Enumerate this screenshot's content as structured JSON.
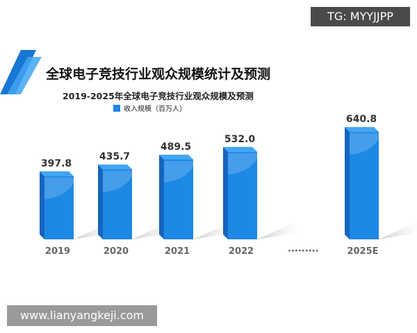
{
  "watermark_top": "TG: MYYJJPP",
  "watermark_bottom": "www.lianyangkeji.com",
  "title": "全球电子竞技行业观众规模统计及预测",
  "colors": {
    "bar": "#1e88e5",
    "bar_side": "#1565c0",
    "bar_top": "#42a5f5"
  },
  "chart_data": {
    "type": "bar",
    "title": "2019-2025年全球电子竞技行业观众规模及预测",
    "legend": "收入规模（百万人）",
    "legend_position": "top",
    "categories": [
      "2019",
      "2020",
      "2021",
      "2022",
      "2025E"
    ],
    "values": [
      397.8,
      435.7,
      489.5,
      532.0,
      640.8
    ],
    "value_labels": [
      "397.8",
      "435.7",
      "489.5",
      "532.0",
      "640.8"
    ],
    "gap_marker": "·········",
    "grid": false
  }
}
